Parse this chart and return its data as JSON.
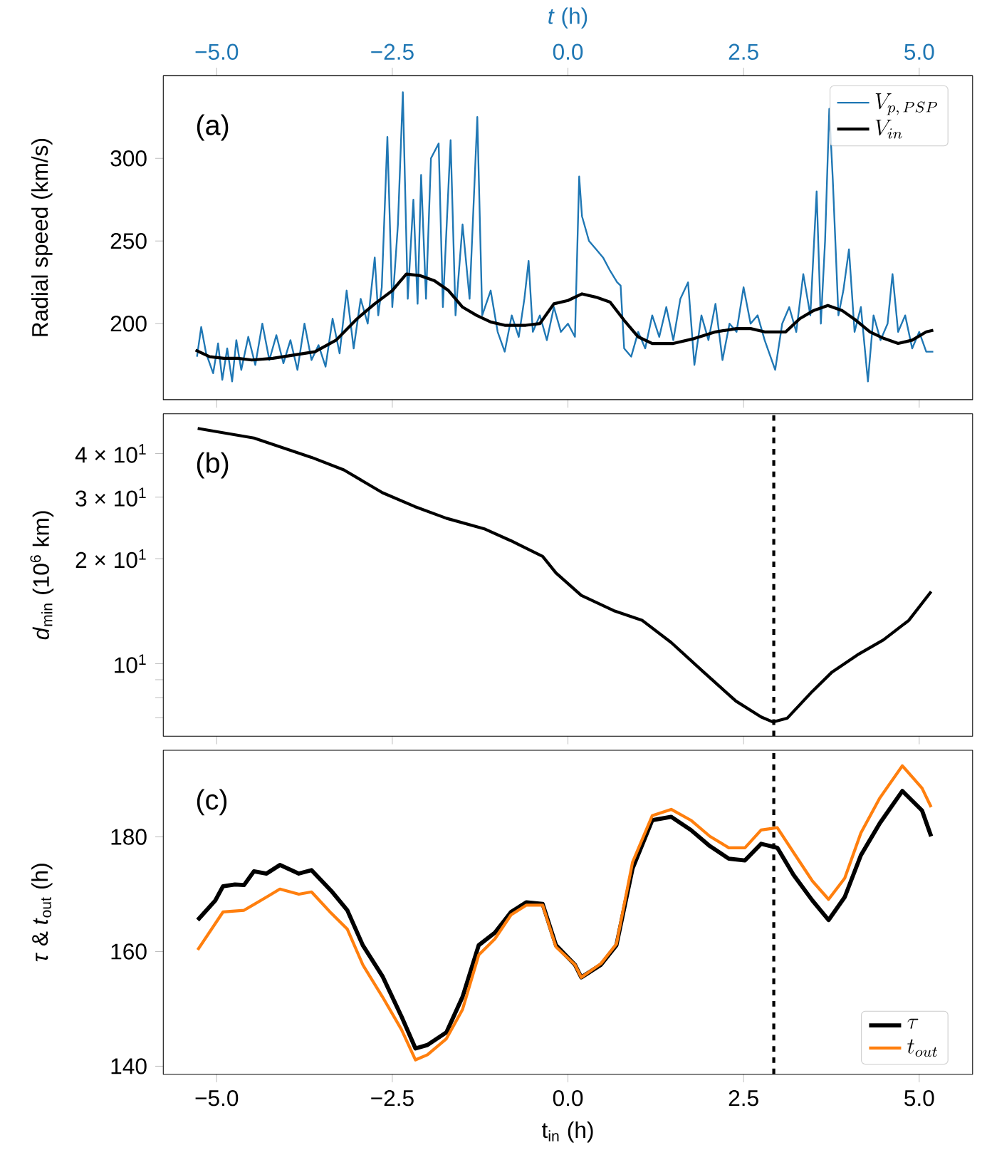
{
  "chart_data": [
    {
      "type": "line",
      "ylabel": "Radial speed (km/s)",
      "x2label": "*t* (h)",
      "xlim": [
        -5.76,
        5.76
      ],
      "x2lim": [
        -5.76,
        5.76
      ],
      "ylim": [
        154,
        350
      ],
      "tick_labels": "y",
      "x2ticks": [
        {
          "value": -5,
          "label": "−5.0"
        },
        {
          "value": -2.5,
          "label": "−2.5"
        },
        {
          "value": 0,
          "label": "0.0"
        },
        {
          "value": 2.5,
          "label": "2.5"
        },
        {
          "value": 5,
          "label": "5.0"
        }
      ],
      "xticks": [
        {
          "value": -5,
          "label": null
        },
        {
          "value": -2.5,
          "label": null
        },
        {
          "value": 0,
          "label": null
        },
        {
          "value": 2.5,
          "label": null
        },
        {
          "value": 5,
          "label": null
        }
      ],
      "yticks": [
        200,
        250,
        300
      ],
      "legend": "top right",
      "annotations": [
        "(a)"
      ],
      "series": [
        {
          "name": "V_{p,\\,PSP}",
          "color": "#1f77b4",
          "x": [
            -5.28,
            -5.22,
            -5.15,
            -5.05,
            -4.98,
            -4.92,
            -4.85,
            -4.78,
            -4.72,
            -4.65,
            -4.55,
            -4.45,
            -4.35,
            -4.25,
            -4.15,
            -4.05,
            -3.95,
            -3.85,
            -3.75,
            -3.65,
            -3.55,
            -3.45,
            -3.35,
            -3.25,
            -3.15,
            -3.05,
            -2.95,
            -2.85,
            -2.75,
            -2.7,
            -2.65,
            -2.57,
            -2.5,
            -2.42,
            -2.35,
            -2.28,
            -2.2,
            -2.14,
            -2.09,
            -2.02,
            -1.95,
            -1.84,
            -1.78,
            -1.67,
            -1.6,
            -1.5,
            -1.4,
            -1.29,
            -1.22,
            -1.1,
            -1.0,
            -0.9,
            -0.8,
            -0.7,
            -0.62,
            -0.56,
            -0.5,
            -0.4,
            -0.3,
            -0.2,
            -0.1,
            0.0,
            0.1,
            0.16,
            0.2,
            0.3,
            0.4,
            0.5,
            0.6,
            0.7,
            0.75,
            0.8,
            0.9,
            1.0,
            1.1,
            1.2,
            1.3,
            1.4,
            1.5,
            1.6,
            1.71,
            1.8,
            1.9,
            2.0,
            2.1,
            2.2,
            2.3,
            2.4,
            2.5,
            2.6,
            2.7,
            2.8,
            2.95,
            3.05,
            3.15,
            3.25,
            3.35,
            3.45,
            3.54,
            3.6,
            3.66,
            3.72,
            3.77,
            3.85,
            3.92,
            4.0,
            4.08,
            4.17,
            4.27,
            4.35,
            4.45,
            4.55,
            4.62,
            4.7,
            4.8,
            4.9,
            5.0,
            5.1,
            5.2
          ],
          "values": [
            180,
            198,
            182,
            170,
            188,
            166,
            185,
            165,
            190,
            172,
            192,
            175,
            200,
            178,
            193,
            176,
            190,
            172,
            200,
            178,
            187,
            174,
            203,
            182,
            220,
            185,
            215,
            200,
            240,
            205,
            222,
            313,
            210,
            260,
            340,
            215,
            275,
            212,
            290,
            215,
            300,
            309,
            210,
            311,
            205,
            260,
            215,
            325,
            205,
            220,
            195,
            183,
            205,
            192,
            215,
            238,
            195,
            205,
            190,
            210,
            195,
            200,
            192,
            289,
            265,
            250,
            245,
            240,
            232,
            225,
            223,
            185,
            180,
            195,
            185,
            205,
            192,
            210,
            190,
            215,
            225,
            175,
            205,
            190,
            212,
            178,
            200,
            195,
            222,
            200,
            205,
            190,
            172,
            200,
            210,
            195,
            230,
            205,
            280,
            200,
            250,
            330,
            287,
            205,
            220,
            245,
            195,
            210,
            165,
            205,
            190,
            200,
            230,
            195,
            205,
            185,
            195,
            183,
            183
          ]
        },
        {
          "name": "V_{in}",
          "color": "#000000",
          "x": [
            -5.3,
            -5.1,
            -4.9,
            -4.7,
            -4.5,
            -4.2,
            -3.9,
            -3.6,
            -3.3,
            -3.0,
            -2.75,
            -2.5,
            -2.4,
            -2.3,
            -2.1,
            -1.9,
            -1.7,
            -1.5,
            -1.3,
            -1.1,
            -0.9,
            -0.6,
            -0.4,
            -0.2,
            0.0,
            0.2,
            0.4,
            0.6,
            0.8,
            1.0,
            1.2,
            1.5,
            1.8,
            2.1,
            2.4,
            2.6,
            2.8,
            3.1,
            3.3,
            3.5,
            3.7,
            3.9,
            4.1,
            4.3,
            4.5,
            4.7,
            4.9,
            5.1,
            5.2
          ],
          "values": [
            184,
            180,
            179,
            179,
            178,
            179,
            181,
            183,
            190,
            203,
            212,
            220,
            225,
            230,
            229,
            226,
            220,
            210,
            205,
            201,
            199,
            199,
            200,
            212,
            214,
            218,
            216,
            213,
            202,
            192,
            188,
            188,
            191,
            195,
            197,
            197,
            195,
            195,
            203,
            208,
            211,
            208,
            202,
            195,
            191,
            188,
            190,
            195,
            196
          ]
        }
      ]
    },
    {
      "type": "line",
      "ylabel": "*d*$_{min}$ (10$^{6}$ km)",
      "xlim": [
        -5.76,
        5.76
      ],
      "ylim": [
        6.2,
        52
      ],
      "log": "y",
      "tick_labels": "y",
      "xticks": [
        {
          "value": -5,
          "label": null
        },
        {
          "value": -2.5,
          "label": null
        },
        {
          "value": 0,
          "label": null
        },
        {
          "value": 2.5,
          "label": null
        },
        {
          "value": 5,
          "label": null
        }
      ],
      "yticks": [
        {
          "value": 7,
          "label": null
        },
        {
          "value": 8,
          "label": null
        },
        {
          "value": 9,
          "label": null
        },
        {
          "value": 10,
          "label": "10$^{1}$"
        },
        {
          "value": 20,
          "label": "2 × 10$^{1}$"
        },
        {
          "value": 30,
          "label": "3 × 10$^{1}$"
        },
        {
          "value": 40,
          "label": "4 × 10$^{1}$"
        }
      ],
      "annotations": [
        "(b)"
      ],
      "ref_lines": [
        {
          "axis": "x",
          "value": 2.93,
          "color": "#000000",
          "line_style": "dashed"
        }
      ],
      "series": [
        {
          "color": "#000000",
          "x": [
            -5.27,
            -4.47,
            -3.65,
            -3.19,
            -2.64,
            -2.18,
            -1.73,
            -1.18,
            -0.81,
            -0.36,
            -0.17,
            0.19,
            0.65,
            1.06,
            1.47,
            1.93,
            2.39,
            2.75,
            2.92,
            3.12,
            3.48,
            3.76,
            4.12,
            4.49,
            4.85,
            5.17
          ],
          "values": [
            47.2,
            44.3,
            39.0,
            35.9,
            30.9,
            28.2,
            26.1,
            24.3,
            22.5,
            20.3,
            18.2,
            15.7,
            14.2,
            13.3,
            11.5,
            9.47,
            7.82,
            7.04,
            6.81,
            6.98,
            8.34,
            9.47,
            10.6,
            11.7,
            13.3,
            16.1
          ]
        }
      ]
    },
    {
      "type": "line",
      "ylabel": "*τ* & *t*$_{out}$ (h)",
      "xlabel": "t$_{in}$ (h)",
      "xlim": [
        -5.76,
        5.76
      ],
      "ylim": [
        138.6,
        195.1
      ],
      "xticks": [
        {
          "value": -5,
          "label": "−5.0"
        },
        {
          "value": -2.5,
          "label": "−2.5"
        },
        {
          "value": 0,
          "label": "0.0"
        },
        {
          "value": 2.5,
          "label": "2.5"
        },
        {
          "value": 5,
          "label": "5.0"
        }
      ],
      "yticks": [
        140,
        160,
        180
      ],
      "legend": "bottom right",
      "annotations": [
        "(c)"
      ],
      "ref_lines": [
        {
          "axis": "x",
          "value": 2.93,
          "color": "#000000",
          "line_style": "dashed"
        }
      ],
      "series": [
        {
          "name": "\\tau",
          "color": "#000000",
          "x": [
            -5.27,
            -5.02,
            -4.91,
            -4.74,
            -4.61,
            -4.47,
            -4.29,
            -4.1,
            -3.83,
            -3.65,
            -3.37,
            -3.14,
            -2.92,
            -2.64,
            -2.37,
            -2.17,
            -2.0,
            -1.73,
            -1.5,
            -1.27,
            -1.04,
            -0.81,
            -0.59,
            -0.36,
            -0.17,
            0.1,
            0.19,
            0.47,
            0.69,
            0.92,
            1.2,
            1.47,
            1.75,
            2.02,
            2.29,
            2.52,
            2.75,
            2.98,
            3.21,
            3.48,
            3.71,
            3.94,
            4.17,
            4.44,
            4.76,
            5.04,
            5.17
          ],
          "values": [
            165.5,
            168.9,
            171.4,
            171.7,
            171.6,
            174.0,
            173.6,
            175.1,
            173.6,
            174.2,
            170.6,
            167.2,
            161.1,
            155.7,
            148.7,
            143.1,
            143.7,
            145.9,
            152.1,
            161.1,
            163.3,
            166.9,
            168.6,
            168.3,
            161.1,
            157.7,
            155.5,
            157.7,
            161.1,
            174.5,
            182.9,
            183.5,
            181.2,
            178.4,
            176.2,
            175.9,
            178.8,
            178.1,
            173.4,
            168.9,
            165.5,
            169.5,
            176.8,
            182.4,
            188.0,
            184.6,
            180.1
          ]
        },
        {
          "name": "t_{out}",
          "color": "#ff7f0e",
          "x": [
            -5.27,
            -4.91,
            -4.61,
            -4.29,
            -4.1,
            -3.83,
            -3.65,
            -3.37,
            -3.14,
            -2.92,
            -2.64,
            -2.37,
            -2.17,
            -2.0,
            -1.73,
            -1.5,
            -1.27,
            -1.04,
            -0.81,
            -0.59,
            -0.36,
            -0.17,
            0.1,
            0.19,
            0.47,
            0.69,
            0.92,
            1.2,
            1.47,
            1.75,
            2.02,
            2.29,
            2.52,
            2.75,
            2.98,
            3.21,
            3.48,
            3.71,
            3.94,
            4.17,
            4.44,
            4.76,
            5.04,
            5.17
          ],
          "values": [
            160.3,
            166.9,
            167.2,
            169.5,
            170.9,
            170.0,
            170.4,
            166.7,
            163.9,
            157.7,
            152.1,
            146.4,
            141.1,
            142.0,
            144.8,
            149.9,
            159.4,
            162.2,
            166.4,
            168.1,
            168.1,
            160.8,
            157.7,
            155.5,
            157.9,
            161.3,
            175.6,
            183.7,
            184.8,
            182.9,
            180.1,
            178.1,
            178.1,
            181.2,
            181.6,
            177.3,
            172.3,
            169.1,
            172.8,
            180.7,
            186.8,
            192.4,
            188.5,
            185.2
          ]
        }
      ]
    }
  ]
}
